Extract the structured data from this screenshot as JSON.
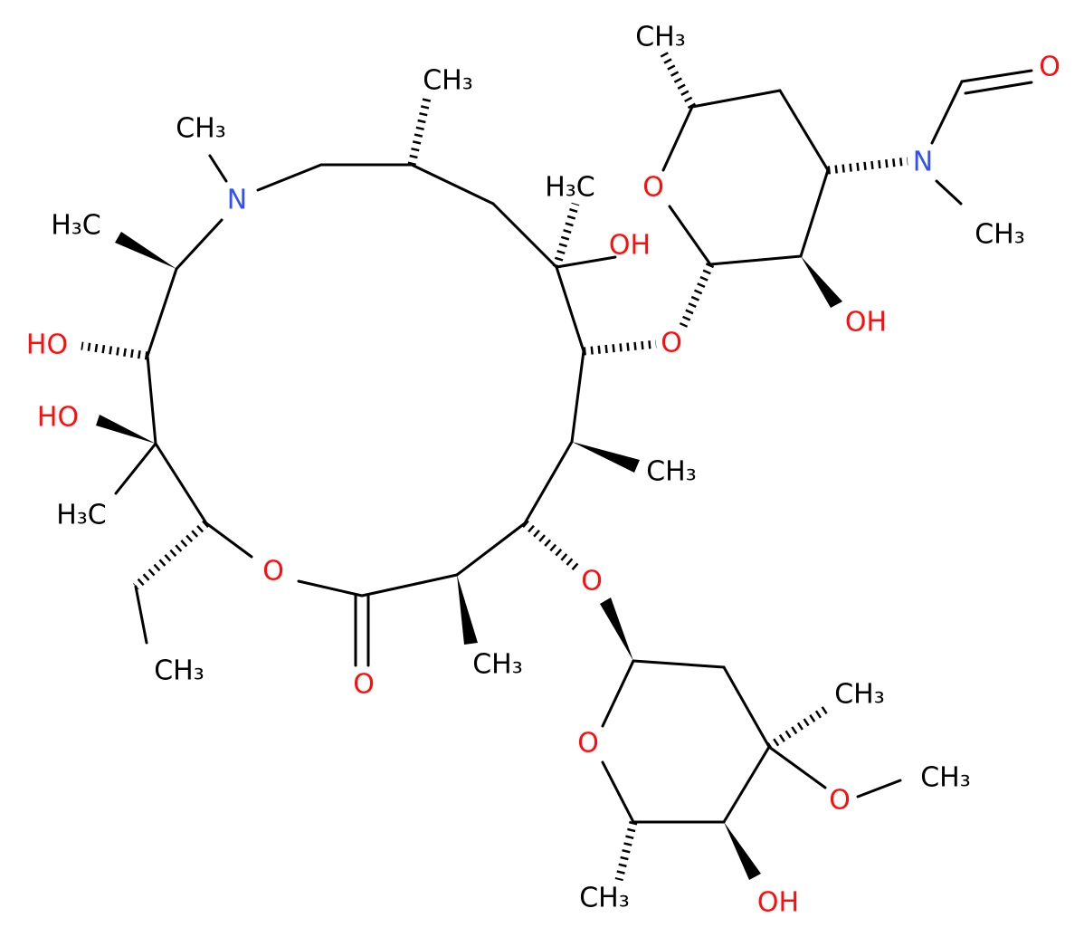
{
  "atoms": [
    "CH₃",
    "CH₃",
    "N",
    "H₃C",
    "H₃C",
    "OH",
    "HO",
    "O",
    "HO",
    "CH₃",
    "H₃C",
    "O",
    "O",
    "CH₃",
    "O",
    "CH₃",
    "CH₃",
    "O",
    "N",
    "O",
    "CH₃",
    "OH",
    "CH₃",
    "O",
    "O",
    "CH₃",
    "CH₃",
    "OH"
  ]
}
